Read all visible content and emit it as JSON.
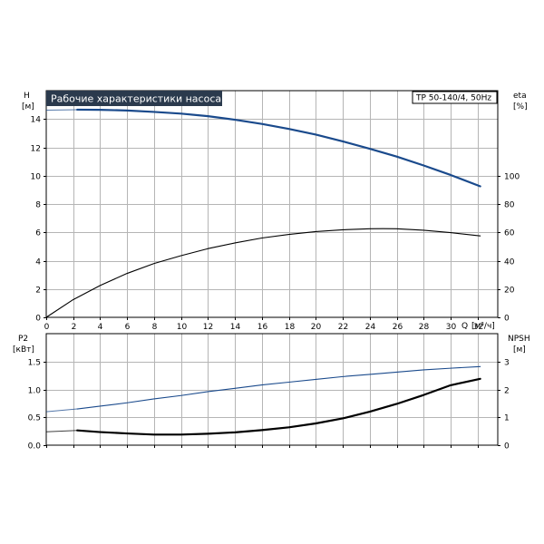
{
  "chart_data": [
    {
      "type": "line",
      "title": "Рабочие характеристики насоса",
      "pump_label": "TP 50-140/4, 50Hz",
      "x_axis": {
        "label": "Q",
        "unit": "[м³/ч]",
        "range": [
          0,
          33.5
        ],
        "ticks": [
          0,
          2,
          4,
          6,
          8,
          10,
          12,
          14,
          16,
          18,
          20,
          22,
          24,
          26,
          28,
          30,
          32
        ]
      },
      "y_left": {
        "label": "H",
        "unit": "[м]",
        "range": [
          0,
          16
        ],
        "ticks": [
          0,
          2,
          4,
          6,
          8,
          10,
          12,
          14
        ]
      },
      "y_right": {
        "label": "eta",
        "unit": "[%]",
        "range": [
          0,
          160
        ],
        "ticks": [
          0,
          20,
          40,
          60,
          80,
          100
        ]
      },
      "grid": true,
      "series": [
        {
          "role": "head",
          "axis": "left",
          "color": "#1a4a8c",
          "style": "thick",
          "dashed_prefix_until_x": 2.3,
          "x": [
            0,
            2.3,
            4,
            6,
            8,
            10,
            12,
            14,
            16,
            18,
            20,
            22,
            24,
            26,
            28,
            30,
            32.2
          ],
          "y": [
            14.62,
            14.66,
            14.65,
            14.6,
            14.5,
            14.38,
            14.2,
            13.95,
            13.65,
            13.3,
            12.9,
            12.42,
            11.9,
            11.35,
            10.72,
            10.05,
            9.25
          ]
        },
        {
          "role": "eta",
          "axis": "right",
          "color": "#000000",
          "style": "thin",
          "x": [
            0,
            2,
            4,
            6,
            8,
            10,
            12,
            14,
            16,
            18,
            20,
            22,
            24,
            25,
            26,
            28,
            30,
            32.2
          ],
          "y": [
            0,
            12.5,
            22.5,
            31,
            38,
            43.5,
            48.5,
            52.5,
            56,
            58.5,
            60.5,
            61.8,
            62.5,
            62.6,
            62.5,
            61.5,
            59.8,
            57.5
          ]
        }
      ]
    },
    {
      "type": "line",
      "x_axis": {
        "range": [
          0,
          33.5
        ],
        "ticks": [
          0,
          2,
          4,
          6,
          8,
          10,
          12,
          14,
          16,
          18,
          20,
          22,
          24,
          26,
          28,
          30,
          32
        ]
      },
      "y_left": {
        "label": "P2",
        "unit": "[кВт]",
        "range": [
          0,
          2.0
        ],
        "ticks": [
          0,
          0.5,
          1.0,
          1.5
        ],
        "tick_labels": [
          "0.0",
          "0.5",
          "1.0",
          "1.5"
        ]
      },
      "y_right": {
        "label": "NPSH",
        "unit": "[м]",
        "range": [
          0,
          4
        ],
        "ticks": [
          0,
          1,
          2,
          3
        ]
      },
      "grid": true,
      "series": [
        {
          "role": "power",
          "axis": "left",
          "color": "#1a4a8c",
          "style": "thin",
          "dashed_prefix_until_x": 2.3,
          "x": [
            0,
            2.3,
            4,
            6,
            8,
            10,
            12,
            14,
            16,
            18,
            20,
            22,
            24,
            26,
            28,
            30,
            32.2
          ],
          "y": [
            0.6,
            0.65,
            0.7,
            0.76,
            0.83,
            0.89,
            0.96,
            1.02,
            1.08,
            1.13,
            1.18,
            1.23,
            1.27,
            1.31,
            1.35,
            1.38,
            1.41
          ]
        },
        {
          "role": "npsh",
          "axis": "right",
          "color": "#000000",
          "style": "thick",
          "dashed_prefix_until_x": 2.3,
          "x": [
            0,
            2.3,
            4,
            6,
            8,
            10,
            12,
            14,
            16,
            18,
            20,
            22,
            24,
            26,
            28,
            30,
            32.2
          ],
          "y": [
            0.48,
            0.53,
            0.47,
            0.42,
            0.38,
            0.38,
            0.41,
            0.46,
            0.54,
            0.64,
            0.78,
            0.96,
            1.2,
            1.48,
            1.8,
            2.15,
            2.38
          ]
        }
      ]
    }
  ]
}
